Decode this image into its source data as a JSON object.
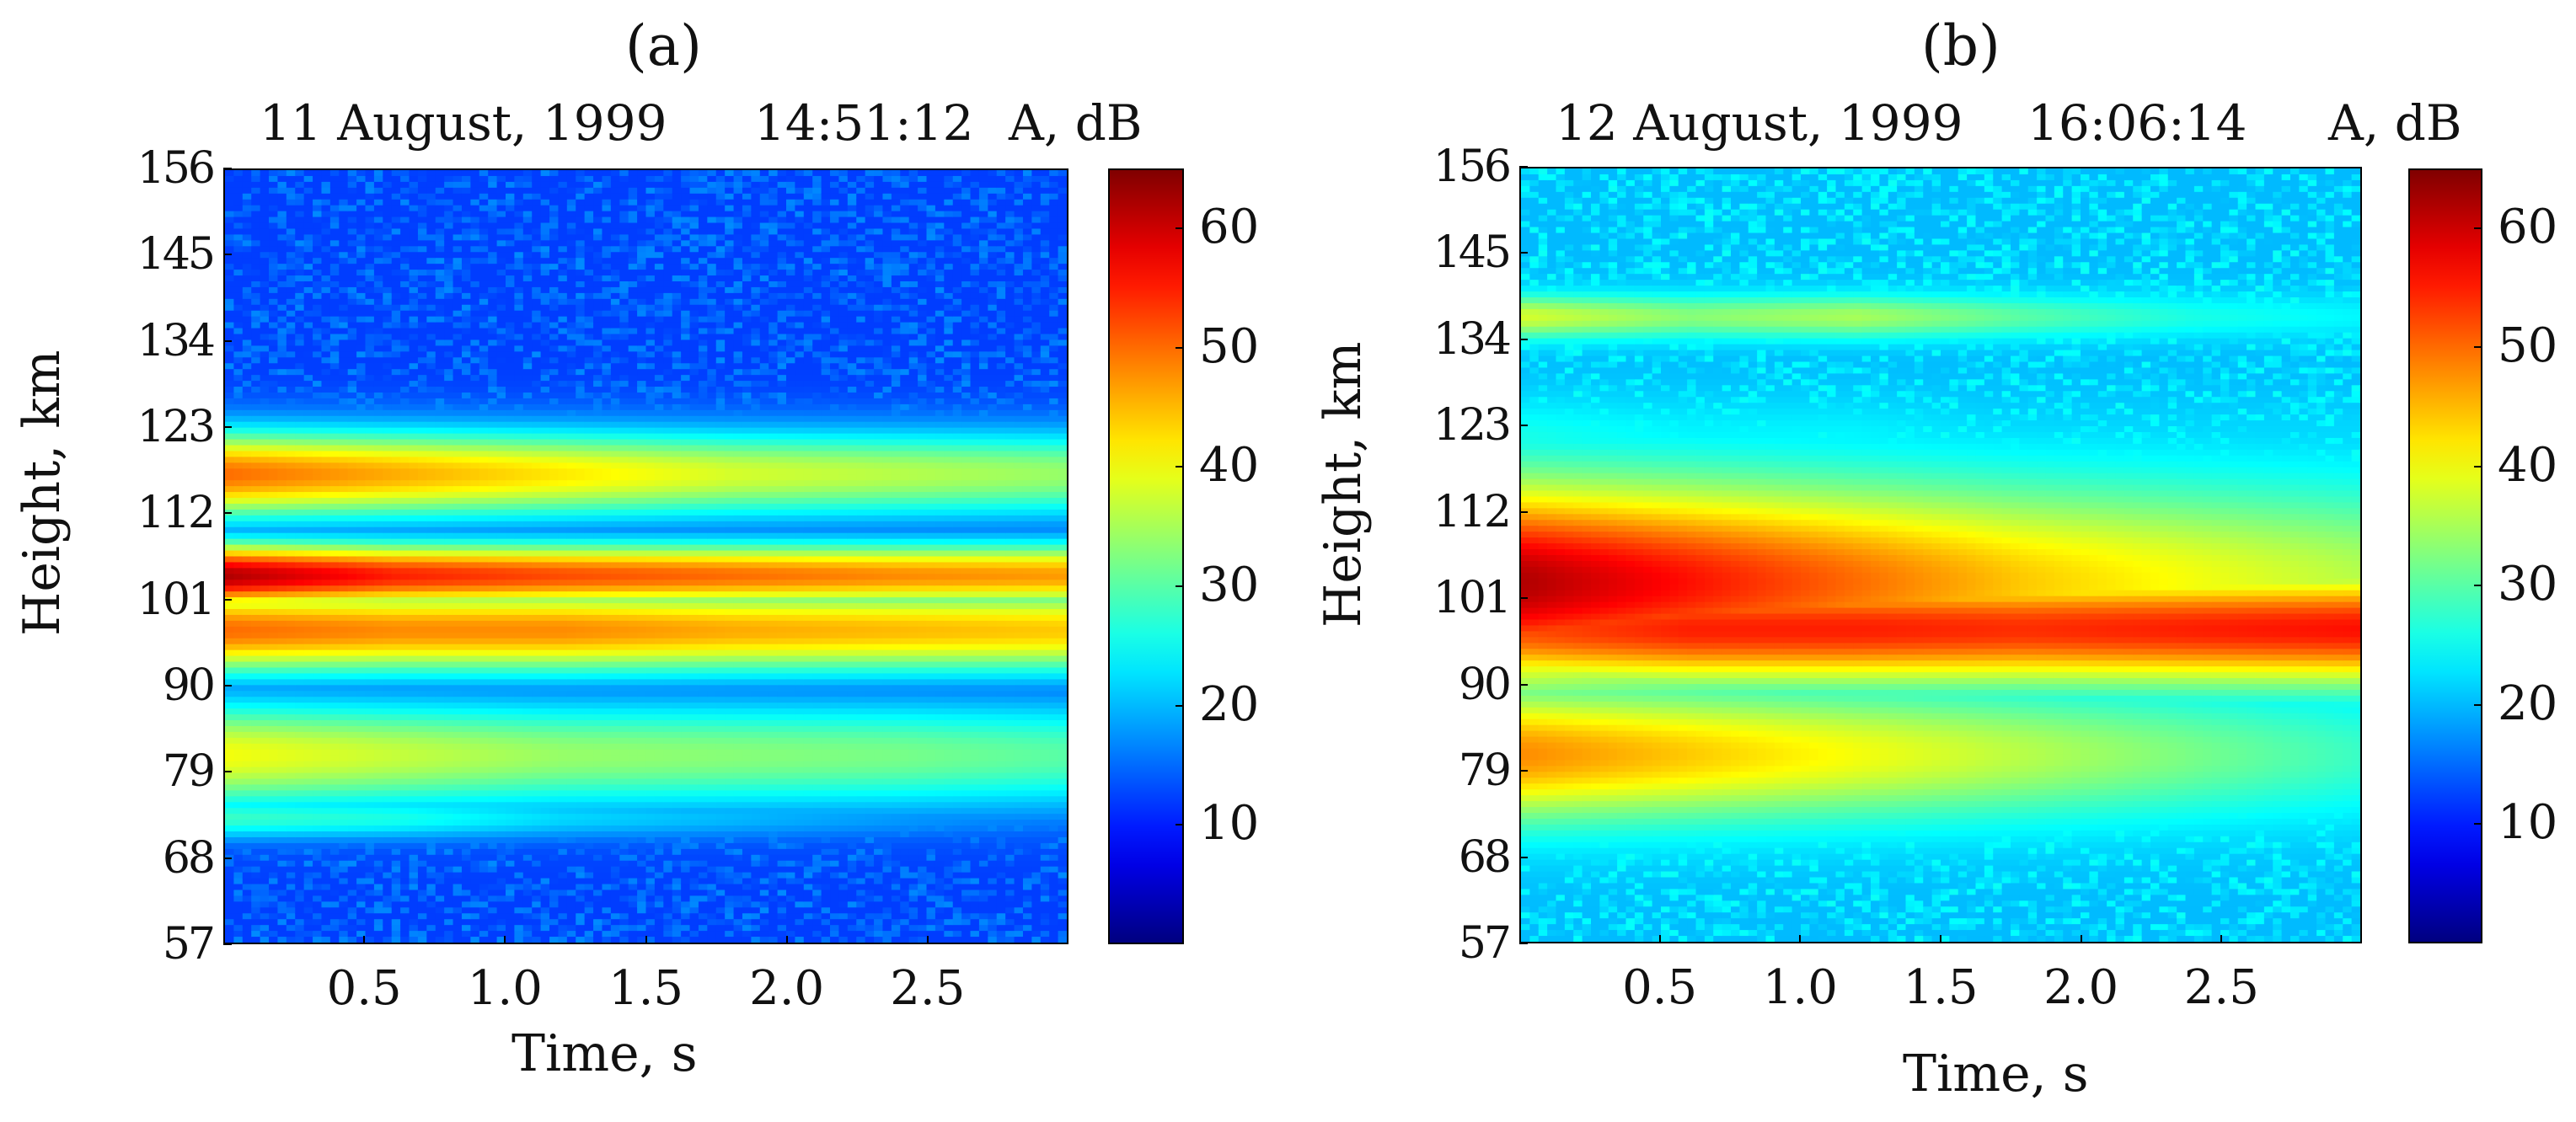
{
  "chart_data": [
    {
      "type": "heatmap",
      "panel_label": "(a)",
      "title": "11 August, 1999",
      "time": "14:51:12",
      "colorbar_label": "A, dB",
      "xlabel": "Time, s",
      "ylabel": "Height, km",
      "xlim": [
        0,
        3.0
      ],
      "ylim": [
        57,
        156
      ],
      "x_ticks": [
        "0.5",
        "1.0",
        "1.5",
        "2.0",
        "2.5"
      ],
      "y_ticks": [
        "156",
        "145",
        "134",
        "123",
        "112",
        "101",
        "90",
        "79",
        "68",
        "57"
      ],
      "colorbar_ticks": [
        "60",
        "50",
        "40",
        "30",
        "20",
        "10"
      ],
      "colorbar_range": [
        0,
        65
      ],
      "colormap": "jet",
      "background_level_db": 12,
      "layers": [
        {
          "height_km": 104,
          "width_km": 3,
          "amplitude_db": [
            62,
            55,
            52,
            50,
            48,
            47
          ]
        },
        {
          "height_km": 117,
          "width_km": 4,
          "amplitude_db": [
            50,
            46,
            42,
            38,
            36,
            34
          ]
        },
        {
          "height_km": 97,
          "width_km": 4,
          "amplitude_db": [
            50,
            48,
            48,
            46,
            45,
            44
          ]
        },
        {
          "height_km": 81,
          "width_km": 5,
          "amplitude_db": [
            40,
            37,
            34,
            33,
            32,
            30
          ]
        },
        {
          "height_km": 73,
          "width_km": 2,
          "amplitude_db": [
            28,
            26,
            22,
            20,
            18,
            16
          ]
        }
      ],
      "amplitude_times_s": [
        0,
        0.6,
        1.2,
        1.8,
        2.4,
        3.0
      ]
    },
    {
      "type": "heatmap",
      "panel_label": "(b)",
      "title": "12 August, 1999",
      "time": "16:06:14",
      "colorbar_label": "A, dB",
      "xlabel": "Time, s",
      "ylabel": "Height, km",
      "xlim": [
        0,
        3.0
      ],
      "ylim": [
        57,
        156
      ],
      "x_ticks": [
        "0.5",
        "1.0",
        "1.5",
        "2.0",
        "2.5"
      ],
      "y_ticks": [
        "156",
        "145",
        "134",
        "123",
        "112",
        "101",
        "90",
        "79",
        "68",
        "57"
      ],
      "colorbar_ticks": [
        "60",
        "50",
        "40",
        "30",
        "20",
        "10"
      ],
      "colorbar_range": [
        0,
        65
      ],
      "colormap": "jet",
      "background_level_db": 20,
      "layers": [
        {
          "height_km": 103,
          "width_km": 9,
          "amplitude_db": [
            62,
            56,
            50,
            44,
            40,
            36
          ]
        },
        {
          "height_km": 97,
          "width_km": 5,
          "amplitude_db": [
            52,
            55,
            55,
            54,
            55,
            56
          ]
        },
        {
          "height_km": 81,
          "width_km": 6,
          "amplitude_db": [
            48,
            44,
            40,
            36,
            32,
            28
          ]
        },
        {
          "height_km": 137,
          "width_km": 2,
          "amplitude_db": [
            38,
            33,
            35,
            30,
            26,
            24
          ]
        },
        {
          "height_km": 121,
          "width_km": 4,
          "amplitude_db": [
            26,
            24,
            24,
            22,
            22,
            22
          ]
        }
      ],
      "amplitude_times_s": [
        0,
        0.6,
        1.2,
        1.8,
        2.4,
        3.0
      ]
    }
  ]
}
